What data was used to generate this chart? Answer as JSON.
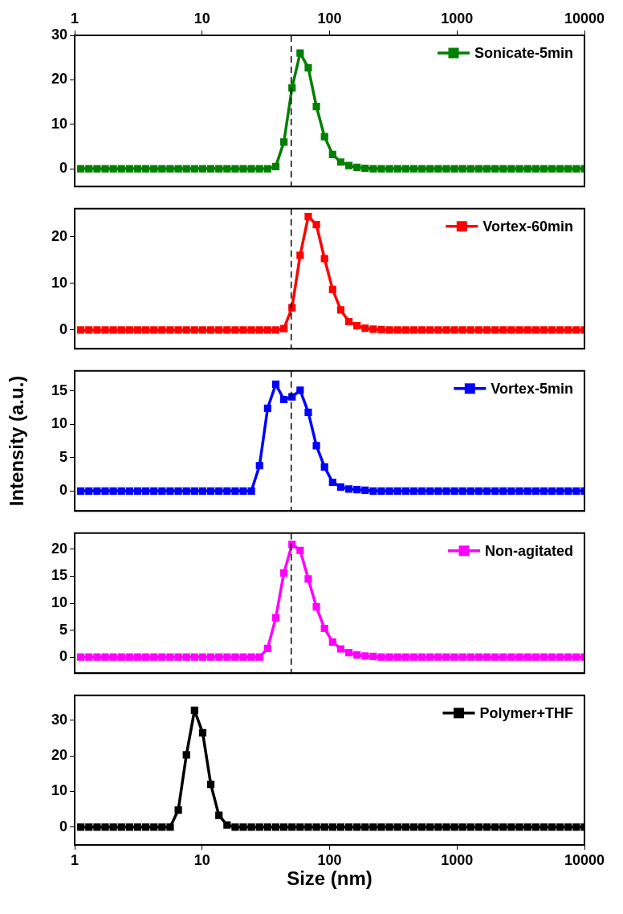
{
  "chart_data": [
    {
      "type": "line",
      "log": "x",
      "marker": "square",
      "line_style": "solid",
      "legend": "top right",
      "xlim": [
        1,
        10000
      ],
      "xticks": [
        1,
        10,
        100,
        1000,
        10000
      ],
      "ylim": [
        -4,
        30
      ],
      "yticks": [
        0,
        10,
        20,
        30
      ],
      "ref_lines": [
        {
          "axis": "x",
          "value": 50
        }
      ],
      "x": [
        1.117,
        1.294,
        1.499,
        1.736,
        2.01,
        2.328,
        2.696,
        3.122,
        3.615,
        4.187,
        4.849,
        5.615,
        6.503,
        7.531,
        8.721,
        10.1,
        11.7,
        13.55,
        15.69,
        18.17,
        21.04,
        24.36,
        28.21,
        32.67,
        37.84,
        43.82,
        50.75,
        58.77,
        68.06,
        78.82,
        91.28,
        105.7,
        122.4,
        141.8,
        164.2,
        190.1,
        220.2,
        255,
        295.3,
        342,
        396.1,
        458.7,
        531.2,
        615.1,
        712.4,
        825,
        955.4,
        1106,
        1281,
        1484,
        1718,
        1990,
        2305,
        2669,
        3091,
        3580,
        4145,
        4801,
        5560,
        6439,
        7456,
        8635,
        10000
      ],
      "series": [
        {
          "name": "Sonicate-5min",
          "color": "#008000",
          "values": [
            0,
            0,
            0,
            0,
            0,
            0,
            0,
            0,
            0,
            0,
            0,
            0,
            0,
            0,
            0,
            0,
            0,
            0,
            0,
            0,
            0,
            0,
            0,
            0,
            0.5,
            6,
            18.2,
            26,
            22.7,
            14,
            7.2,
            3.2,
            1.5,
            0.7,
            0.3,
            0.1,
            0,
            0,
            0,
            0,
            0,
            0,
            0,
            0,
            0,
            0,
            0,
            0,
            0,
            0,
            0,
            0,
            0,
            0,
            0,
            0,
            0,
            0,
            0,
            0,
            0,
            0,
            0
          ]
        }
      ]
    },
    {
      "type": "line",
      "log": "x",
      "marker": "square",
      "line_style": "solid",
      "legend": "top right",
      "tick_labels": "y",
      "xlim": [
        1,
        10000
      ],
      "xticks": [
        1,
        10,
        100,
        1000,
        10000
      ],
      "ylim": [
        -4,
        26
      ],
      "yticks": [
        0,
        10,
        20
      ],
      "ref_lines": [
        {
          "axis": "x",
          "value": 50
        }
      ],
      "x": [
        1.117,
        1.294,
        1.499,
        1.736,
        2.01,
        2.328,
        2.696,
        3.122,
        3.615,
        4.187,
        4.849,
        5.615,
        6.503,
        7.531,
        8.721,
        10.1,
        11.7,
        13.55,
        15.69,
        18.17,
        21.04,
        24.36,
        28.21,
        32.67,
        37.84,
        43.82,
        50.75,
        58.77,
        68.06,
        78.82,
        91.28,
        105.7,
        122.4,
        141.8,
        164.2,
        190.1,
        220.2,
        255,
        295.3,
        342,
        396.1,
        458.7,
        531.2,
        615.1,
        712.4,
        825,
        955.4,
        1106,
        1281,
        1484,
        1718,
        1990,
        2305,
        2669,
        3091,
        3580,
        4145,
        4801,
        5560,
        6439,
        7456,
        8635,
        10000
      ],
      "series": [
        {
          "name": "Vortex-60min",
          "color": "#ff0000",
          "values": [
            0,
            0,
            0,
            0,
            0,
            0,
            0,
            0,
            0,
            0,
            0,
            0,
            0,
            0,
            0,
            0,
            0,
            0,
            0,
            0,
            0,
            0,
            0,
            0,
            0,
            0.3,
            4.8,
            16,
            24.3,
            22.6,
            15.3,
            8.7,
            4.3,
            1.8,
            0.9,
            0.4,
            0.2,
            0.1,
            0,
            0,
            0,
            0,
            0,
            0,
            0,
            0,
            0,
            0,
            0,
            0,
            0,
            0,
            0,
            0,
            0,
            0,
            0,
            0,
            0,
            0,
            0,
            0,
            0
          ]
        }
      ]
    },
    {
      "type": "line",
      "log": "x",
      "marker": "square",
      "line_style": "solid",
      "legend": "top right",
      "tick_labels": "y",
      "ylabel": "Intensity (a.u.)",
      "xlim": [
        1,
        10000
      ],
      "xticks": [
        1,
        10,
        100,
        1000,
        10000
      ],
      "ylim": [
        -3,
        18
      ],
      "yticks": [
        0,
        5,
        10,
        15
      ],
      "ref_lines": [
        {
          "axis": "x",
          "value": 50
        }
      ],
      "x": [
        1.117,
        1.294,
        1.499,
        1.736,
        2.01,
        2.328,
        2.696,
        3.122,
        3.615,
        4.187,
        4.849,
        5.615,
        6.503,
        7.531,
        8.721,
        10.1,
        11.7,
        13.55,
        15.69,
        18.17,
        21.04,
        24.36,
        28.21,
        32.67,
        37.84,
        43.82,
        50.75,
        58.77,
        68.06,
        78.82,
        91.28,
        105.7,
        122.4,
        141.8,
        164.2,
        190.1,
        220.2,
        255,
        295.3,
        342,
        396.1,
        458.7,
        531.2,
        615.1,
        712.4,
        825,
        955.4,
        1106,
        1281,
        1484,
        1718,
        1990,
        2305,
        2669,
        3091,
        3580,
        4145,
        4801,
        5560,
        6439,
        7456,
        8635,
        10000
      ],
      "series": [
        {
          "name": "Vortex-5min",
          "color": "#0000ff",
          "values": [
            0,
            0,
            0,
            0,
            0,
            0,
            0,
            0,
            0,
            0,
            0,
            0,
            0,
            0,
            0,
            0,
            0,
            0,
            0,
            0,
            0,
            0,
            3.8,
            12.4,
            16,
            13.7,
            14.1,
            15.1,
            11.8,
            6.8,
            3.6,
            1.3,
            0.6,
            0.3,
            0.2,
            0.1,
            0,
            0,
            0,
            0,
            0,
            0,
            0,
            0,
            0,
            0,
            0,
            0,
            0,
            0,
            0,
            0,
            0,
            0,
            0,
            0,
            0,
            0,
            0,
            0,
            0,
            0,
            0
          ]
        }
      ]
    },
    {
      "type": "line",
      "log": "x",
      "marker": "square",
      "line_style": "solid",
      "legend": "top right",
      "tick_labels": "y",
      "xlim": [
        1,
        10000
      ],
      "xticks": [
        1,
        10,
        100,
        1000,
        10000
      ],
      "ylim": [
        -3,
        23
      ],
      "yticks": [
        0,
        5,
        10,
        15,
        20
      ],
      "ref_lines": [
        {
          "axis": "x",
          "value": 50
        }
      ],
      "x": [
        1.117,
        1.294,
        1.499,
        1.736,
        2.01,
        2.328,
        2.696,
        3.122,
        3.615,
        4.187,
        4.849,
        5.615,
        6.503,
        7.531,
        8.721,
        10.1,
        11.7,
        13.55,
        15.69,
        18.17,
        21.04,
        24.36,
        28.21,
        32.67,
        37.84,
        43.82,
        50.75,
        58.77,
        68.06,
        78.82,
        91.28,
        105.7,
        122.4,
        141.8,
        164.2,
        190.1,
        220.2,
        255,
        295.3,
        342,
        396.1,
        458.7,
        531.2,
        615.1,
        712.4,
        825,
        955.4,
        1106,
        1281,
        1484,
        1718,
        1990,
        2305,
        2669,
        3091,
        3580,
        4145,
        4801,
        5560,
        6439,
        7456,
        8635,
        10000
      ],
      "series": [
        {
          "name": "Non-agitated",
          "color": "#ff00ff",
          "values": [
            0,
            0,
            0,
            0,
            0,
            0,
            0,
            0,
            0,
            0,
            0,
            0,
            0,
            0,
            0,
            0,
            0,
            0,
            0,
            0,
            0,
            0,
            0,
            1.6,
            7.3,
            15.6,
            20.9,
            19.8,
            14.5,
            9.3,
            5.3,
            2.8,
            1.5,
            0.8,
            0.4,
            0.2,
            0.1,
            0,
            0,
            0,
            0,
            0,
            0,
            0,
            0,
            0,
            0,
            0,
            0,
            0,
            0,
            0,
            0,
            0,
            0,
            0,
            0,
            0,
            0,
            0,
            0,
            0,
            0
          ]
        }
      ]
    },
    {
      "type": "line",
      "log": "x",
      "marker": "square",
      "line_style": "solid",
      "legend": "top right",
      "xlabel": "Size (nm)",
      "xlim": [
        1,
        10000
      ],
      "xticks": [
        1,
        10,
        100,
        1000,
        10000
      ],
      "ylim": [
        -5,
        37
      ],
      "yticks": [
        0,
        10,
        20,
        30
      ],
      "x": [
        1.117,
        1.294,
        1.499,
        1.736,
        2.01,
        2.328,
        2.696,
        3.122,
        3.615,
        4.187,
        4.849,
        5.615,
        6.503,
        7.531,
        8.721,
        10.1,
        11.7,
        13.55,
        15.69,
        18.17,
        21.04,
        24.36,
        28.21,
        32.67,
        37.84,
        43.82,
        50.75,
        58.77,
        68.06,
        78.82,
        91.28,
        105.7,
        122.4,
        141.8,
        164.2,
        190.1,
        220.2,
        255,
        295.3,
        342,
        396.1,
        458.7,
        531.2,
        615.1,
        712.4,
        825,
        955.4,
        1106,
        1281,
        1484,
        1718,
        1990,
        2305,
        2669,
        3091,
        3580,
        4145,
        4801,
        5560,
        6439,
        7456,
        8635,
        10000
      ],
      "series": [
        {
          "name": "Polymer+THF",
          "color": "#000000",
          "values": [
            0,
            0,
            0,
            0,
            0,
            0,
            0,
            0,
            0,
            0,
            0,
            0,
            4.8,
            20.3,
            32.8,
            26.5,
            12,
            3.3,
            0.6,
            0,
            0,
            0,
            0,
            0,
            0,
            0,
            0,
            0,
            0,
            0,
            0,
            0,
            0,
            0,
            0,
            0,
            0,
            0,
            0,
            0,
            0,
            0,
            0,
            0,
            0,
            0,
            0,
            0,
            0,
            0,
            0,
            0,
            0,
            0,
            0,
            0,
            0,
            0,
            0,
            0,
            0,
            0,
            0
          ]
        }
      ]
    }
  ]
}
